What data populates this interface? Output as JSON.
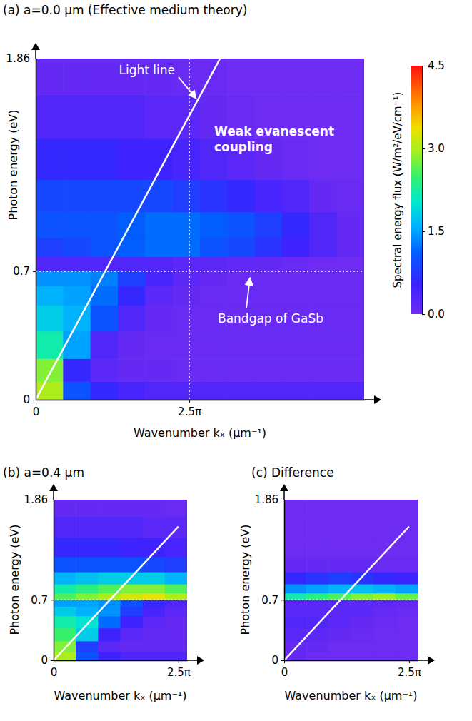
{
  "chart_data": [
    {
      "type": "heatmap",
      "title": "(a) a=0.0 μm (Effective medium theory)",
      "x_label": "Wavenumber kₓ (μm⁻¹)",
      "y_label": "Photon energy (eV)",
      "xlim": [
        0,
        16.8
      ],
      "ylim": [
        0,
        1.86
      ],
      "xticks": [
        0,
        {
          "value": 7.854,
          "label": "2.5π"
        }
      ],
      "yticks": [
        0,
        0.7,
        1.86
      ],
      "x": [
        0.7,
        2.1,
        3.5,
        4.9,
        6.3,
        7.7,
        9.1,
        10.5,
        11.9,
        13.3,
        14.7,
        16.1
      ],
      "y": [
        0.05,
        0.15,
        0.3,
        0.45,
        0.58,
        0.665,
        0.74,
        0.82,
        0.95,
        1.1,
        1.3,
        1.55,
        1.78
      ],
      "cells": [
        [
          3.0,
          1.0,
          0.6,
          0.4,
          0.3,
          0.3,
          0.3,
          0.3,
          0.3,
          0.3,
          0.3,
          0.3
        ],
        [
          2.8,
          0.6,
          0.2,
          0.1,
          0.1,
          0.05,
          0.05,
          0.05,
          0.05,
          0.05,
          0.05,
          0.05
        ],
        [
          2.2,
          1.5,
          0.3,
          0.1,
          0.05,
          0.05,
          0.05,
          0.05,
          0.05,
          0.05,
          0.05,
          0.05
        ],
        [
          1.8,
          1.6,
          1.0,
          0.3,
          0.1,
          0.05,
          0.05,
          0.05,
          0.05,
          0.05,
          0.05,
          0.05
        ],
        [
          1.6,
          1.5,
          1.2,
          0.6,
          0.2,
          0.1,
          0.05,
          0.05,
          0.05,
          0.05,
          0.05,
          0.05
        ],
        [
          1.4,
          1.4,
          1.3,
          0.8,
          0.4,
          0.2,
          0.1,
          0.05,
          0.05,
          0.05,
          0.05,
          0.05
        ],
        [
          0.3,
          0.3,
          0.3,
          0.3,
          0.3,
          0.2,
          0.2,
          0.15,
          0.1,
          0.05,
          0,
          0
        ],
        [
          0.8,
          0.9,
          1.0,
          1.1,
          1.2,
          1.2,
          1.0,
          0.9,
          0.7,
          0.5,
          0.3,
          0.1
        ],
        [
          1.0,
          1.0,
          1.0,
          1.1,
          1.2,
          1.2,
          1.1,
          1.0,
          0.8,
          0.6,
          0.3,
          0.1
        ],
        [
          0.9,
          0.9,
          0.9,
          0.9,
          0.9,
          0.8,
          0.7,
          0.6,
          0.4,
          0.3,
          0.1,
          0.05
        ],
        [
          0.6,
          0.6,
          0.6,
          0.5,
          0.5,
          0.4,
          0.3,
          0.2,
          0.1,
          0.05,
          0,
          0
        ],
        [
          0.3,
          0.3,
          0.3,
          0.3,
          0.2,
          0.2,
          0.1,
          0.05,
          0,
          0,
          0,
          0
        ],
        [
          0.1,
          0.1,
          0.1,
          0.1,
          0.1,
          0.05,
          0.05,
          0,
          0,
          0,
          0,
          0
        ]
      ],
      "light_line": {
        "x": [
          0,
          9.43
        ],
        "y": [
          0,
          1.86
        ]
      },
      "bandgap": 0.7,
      "kx_line": 7.854,
      "annotations": [
        "Light line",
        "Weak evanescent coupling",
        "Bandgap of GaSb"
      ],
      "colorbar": {
        "label": "Spectral energy flux (W/m²/eV/cm⁻¹)",
        "range": [
          0,
          4.5
        ],
        "ticks": [
          {
            "value": 0,
            "label": "0.0"
          },
          1.5,
          {
            "value": 3,
            "label": "3.0"
          },
          4.5
        ]
      }
    },
    {
      "type": "heatmap",
      "title": "(b) a=0.4 μm",
      "x_label": "Wavenumber kₓ (μm⁻¹)",
      "y_label": "Photon energy (eV)",
      "xlim": [
        0,
        8.4
      ],
      "ylim": [
        0,
        1.86
      ],
      "xticks": [
        0,
        {
          "value": 7.854,
          "label": "2.5π"
        }
      ],
      "yticks": [
        0,
        0.7,
        1.86
      ],
      "x": [
        0.7,
        2.1,
        3.5,
        4.9,
        6.3,
        7.7
      ],
      "y": [
        0.05,
        0.15,
        0.3,
        0.45,
        0.58,
        0.665,
        0.74,
        0.82,
        0.95,
        1.1,
        1.3,
        1.55,
        1.78
      ],
      "cells": [
        [
          3.0,
          1.0,
          0.5,
          0.3,
          0.3,
          0.3
        ],
        [
          2.8,
          0.8,
          0.2,
          0.1,
          0.1,
          0.1
        ],
        [
          2.5,
          1.8,
          0.5,
          0.2,
          0.1,
          0.1
        ],
        [
          2.2,
          2.0,
          1.2,
          0.5,
          0.2,
          0.1
        ],
        [
          1.8,
          1.6,
          1.4,
          0.8,
          0.4,
          0.2
        ],
        [
          1.5,
          1.5,
          1.4,
          1.0,
          0.6,
          0.3
        ],
        [
          2.6,
          2.8,
          3.0,
          3.2,
          3.3,
          3.0
        ],
        [
          2.2,
          2.4,
          2.6,
          2.8,
          2.8,
          2.6
        ],
        [
          1.6,
          1.7,
          1.8,
          1.8,
          1.8,
          1.6
        ],
        [
          1.0,
          1.0,
          1.0,
          1.0,
          0.9,
          0.8
        ],
        [
          0.6,
          0.6,
          0.6,
          0.5,
          0.5,
          0.4
        ],
        [
          0.3,
          0.3,
          0.3,
          0.3,
          0.2,
          0.2
        ],
        [
          0.1,
          0.1,
          0.1,
          0.1,
          0.1,
          0.05
        ]
      ],
      "light_line": {
        "x": [
          0,
          7.854
        ],
        "y": [
          0,
          1.55
        ]
      },
      "bandgap": 0.7
    },
    {
      "type": "heatmap",
      "title": "(c) Difference",
      "x_label": "Wavenumber kₓ (μm⁻¹)",
      "y_label": "Photon energy (eV)",
      "xlim": [
        0,
        8.4
      ],
      "ylim": [
        0,
        1.86
      ],
      "xticks": [
        0,
        {
          "value": 7.854,
          "label": "2.5π"
        }
      ],
      "yticks": [
        0,
        0.7,
        1.86
      ],
      "x": [
        0.7,
        2.1,
        3.5,
        4.9,
        6.3,
        7.7
      ],
      "y": [
        0.05,
        0.15,
        0.3,
        0.45,
        0.58,
        0.665,
        0.74,
        0.82,
        0.95,
        1.1,
        1.3,
        1.55,
        1.78
      ],
      "cells": [
        [
          0.1,
          0,
          0,
          0,
          0,
          0
        ],
        [
          0.1,
          0.1,
          0,
          0,
          0,
          0
        ],
        [
          0.2,
          0.2,
          0.1,
          0.05,
          0,
          0
        ],
        [
          0.3,
          0.3,
          0.2,
          0.1,
          0.05,
          0
        ],
        [
          0.2,
          0.2,
          0.2,
          0.2,
          0.1,
          0.05
        ],
        [
          0.2,
          0.2,
          0.2,
          0.2,
          0.2,
          0.1
        ],
        [
          2.2,
          2.4,
          2.6,
          2.8,
          2.9,
          2.7
        ],
        [
          1.4,
          1.5,
          1.6,
          1.7,
          1.6,
          1.5
        ],
        [
          0.6,
          0.7,
          0.8,
          0.7,
          0.6,
          0.5
        ],
        [
          0.1,
          0.1,
          0.1,
          0.1,
          0.05,
          0.05
        ],
        [
          0,
          0,
          0,
          0,
          0,
          0
        ],
        [
          0,
          0,
          0,
          0,
          0,
          0
        ],
        [
          0,
          0,
          0,
          0,
          0,
          0
        ]
      ],
      "light_line": {
        "x": [
          0,
          7.854
        ],
        "y": [
          0,
          1.55
        ]
      },
      "bandgap": 0.7
    }
  ]
}
